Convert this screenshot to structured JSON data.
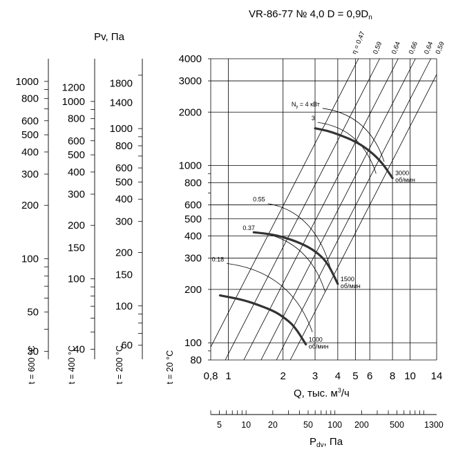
{
  "chart_data": {
    "type": "line",
    "title_parts": {
      "main": "VR-86-77 № 4,0 D = 0,9D",
      "sub": "n"
    },
    "xlabel": {
      "main": "Q, тыс. м",
      "sup": "3",
      "rest": "/ч"
    },
    "ylabel": "Pv, Па",
    "dyn_label": {
      "main": "P",
      "sub": "dv",
      "rest": ", Па"
    },
    "x_scale": "log",
    "y_scale": "log",
    "xlim": [
      0.8,
      14
    ],
    "ylim": [
      80,
      4000
    ],
    "x_ticks": [
      {
        "v": 0.8,
        "label": "0,8"
      },
      {
        "v": 1,
        "label": "1"
      },
      {
        "v": 2,
        "label": "2"
      },
      {
        "v": 3,
        "label": "3"
      },
      {
        "v": 4,
        "label": "4"
      },
      {
        "v": 5,
        "label": "5"
      },
      {
        "v": 6,
        "label": "6"
      },
      {
        "v": 8,
        "label": "8"
      },
      {
        "v": 10,
        "label": "10"
      },
      {
        "v": 14,
        "label": "14"
      }
    ],
    "y_ticks": [
      {
        "v": 80,
        "label": "80"
      },
      {
        "v": 100,
        "label": "100"
      },
      {
        "v": 200,
        "label": "200"
      },
      {
        "v": 300,
        "label": "300"
      },
      {
        "v": 400,
        "label": "400"
      },
      {
        "v": 500,
        "label": "500"
      },
      {
        "v": 600,
        "label": "600"
      },
      {
        "v": 800,
        "label": "800"
      },
      {
        "v": 1000,
        "label": "1000"
      },
      {
        "v": 2000,
        "label": "2000"
      },
      {
        "v": 3000,
        "label": "3000"
      },
      {
        "v": 4000,
        "label": "4000"
      }
    ],
    "efficiency_rays": [
      {
        "label": "η = 0,47",
        "q_at_4000": 5.2
      },
      {
        "label": "0,59",
        "q_at_4000": 6.8
      },
      {
        "label": "0,64",
        "q_at_4000": 8.6
      },
      {
        "label": "0,66",
        "q_at_4000": 10.7
      },
      {
        "label": "0,64",
        "q_at_4000": 13.0
      },
      {
        "label": "0,59",
        "q_at_4000": 15.5
      }
    ],
    "series": [
      {
        "name": "3000 об/мин",
        "label": [
          "3000",
          "об/мин"
        ],
        "points": [
          [
            3.0,
            1620
          ],
          [
            3.5,
            1570
          ],
          [
            4.0,
            1500
          ],
          [
            5.0,
            1370
          ],
          [
            6.0,
            1210
          ],
          [
            7.0,
            1040
          ],
          [
            8.0,
            850
          ]
        ]
      },
      {
        "name": "1500 об/мин",
        "label": [
          "1500",
          "об/мин"
        ],
        "points": [
          [
            1.38,
            420
          ],
          [
            1.7,
            410
          ],
          [
            2.0,
            395
          ],
          [
            2.5,
            365
          ],
          [
            3.0,
            330
          ],
          [
            3.5,
            285
          ],
          [
            4.0,
            215
          ]
        ]
      },
      {
        "name": "1000 об/мин",
        "label": [
          "1000",
          "об/мин"
        ],
        "points": [
          [
            0.9,
            185
          ],
          [
            1.2,
            175
          ],
          [
            1.5,
            162
          ],
          [
            1.8,
            150
          ],
          [
            2.0,
            140
          ],
          [
            2.3,
            125
          ],
          [
            2.67,
            98
          ]
        ]
      }
    ],
    "power_arcs": [
      {
        "label": "N",
        "sub": "у",
        "rest": " = 4 кВт",
        "q_start": 3.3,
        "p_start": 2100,
        "q_end": 7.2,
        "p_end": 1050
      },
      {
        "label": "3",
        "q_start": 3.1,
        "p_start": 1750,
        "q_end": 6.5,
        "p_end": 900
      },
      {
        "label": "0.55",
        "q_start": 1.65,
        "p_start": 610,
        "q_end": 3.7,
        "p_end": 250
      },
      {
        "label": "0.37",
        "q_start": 1.45,
        "p_start": 420,
        "q_end": 3.4,
        "p_end": 195
      },
      {
        "label": "0.18",
        "q_start": 0.98,
        "p_start": 280,
        "q_end": 2.9,
        "p_end": 115
      }
    ],
    "temperature_scales": [
      {
        "label": "t = 600 °C",
        "ticks": [
          {
            "v": 1000,
            "label": "1000"
          },
          {
            "v": 800,
            "label": "800"
          },
          {
            "v": 600,
            "label": "600"
          },
          {
            "v": 500,
            "label": "500"
          },
          {
            "v": 400,
            "label": "400"
          },
          {
            "v": 300,
            "label": "300"
          },
          {
            "v": 200,
            "label": "200"
          },
          {
            "v": 100,
            "label": "100"
          },
          {
            "v": 50,
            "label": "50"
          },
          {
            "v": 30,
            "label": "30"
          }
        ]
      },
      {
        "label": "t = 400 °C",
        "ticks": [
          {
            "v": 1200,
            "label": "1200"
          },
          {
            "v": 1000,
            "label": "1000"
          },
          {
            "v": 800,
            "label": "800"
          },
          {
            "v": 600,
            "label": "600"
          },
          {
            "v": 500,
            "label": "500"
          },
          {
            "v": 400,
            "label": "400"
          },
          {
            "v": 300,
            "label": "300"
          },
          {
            "v": 200,
            "label": "200"
          },
          {
            "v": 150,
            "label": "150"
          },
          {
            "v": 100,
            "label": "100"
          },
          {
            "v": 40,
            "label": "40"
          }
        ]
      },
      {
        "label": "t = 200 °C",
        "ticks": [
          {
            "v": 1800,
            "label": "1800"
          },
          {
            "v": 1400,
            "label": "1400"
          },
          {
            "v": 1000,
            "label": "1000"
          },
          {
            "v": 800,
            "label": "800"
          },
          {
            "v": 600,
            "label": "600"
          },
          {
            "v": 500,
            "label": "500"
          },
          {
            "v": 400,
            "label": "400"
          },
          {
            "v": 300,
            "label": "300"
          },
          {
            "v": 200,
            "label": "200"
          },
          {
            "v": 150,
            "label": "150"
          },
          {
            "v": 100,
            "label": "100"
          },
          {
            "v": 60,
            "label": "60"
          }
        ]
      }
    ],
    "t20_label": "t = 20 °C",
    "dynamic_pressure_ticks": [
      {
        "v": 5,
        "label": "5"
      },
      {
        "v": 10,
        "label": "10"
      },
      {
        "v": 20,
        "label": "20"
      },
      {
        "v": 50,
        "label": "50"
      },
      {
        "v": 100,
        "label": "100"
      },
      {
        "v": 200,
        "label": "200"
      },
      {
        "v": 500,
        "label": "500"
      },
      {
        "v": 1300,
        "label": "1300"
      }
    ],
    "grid": true
  }
}
